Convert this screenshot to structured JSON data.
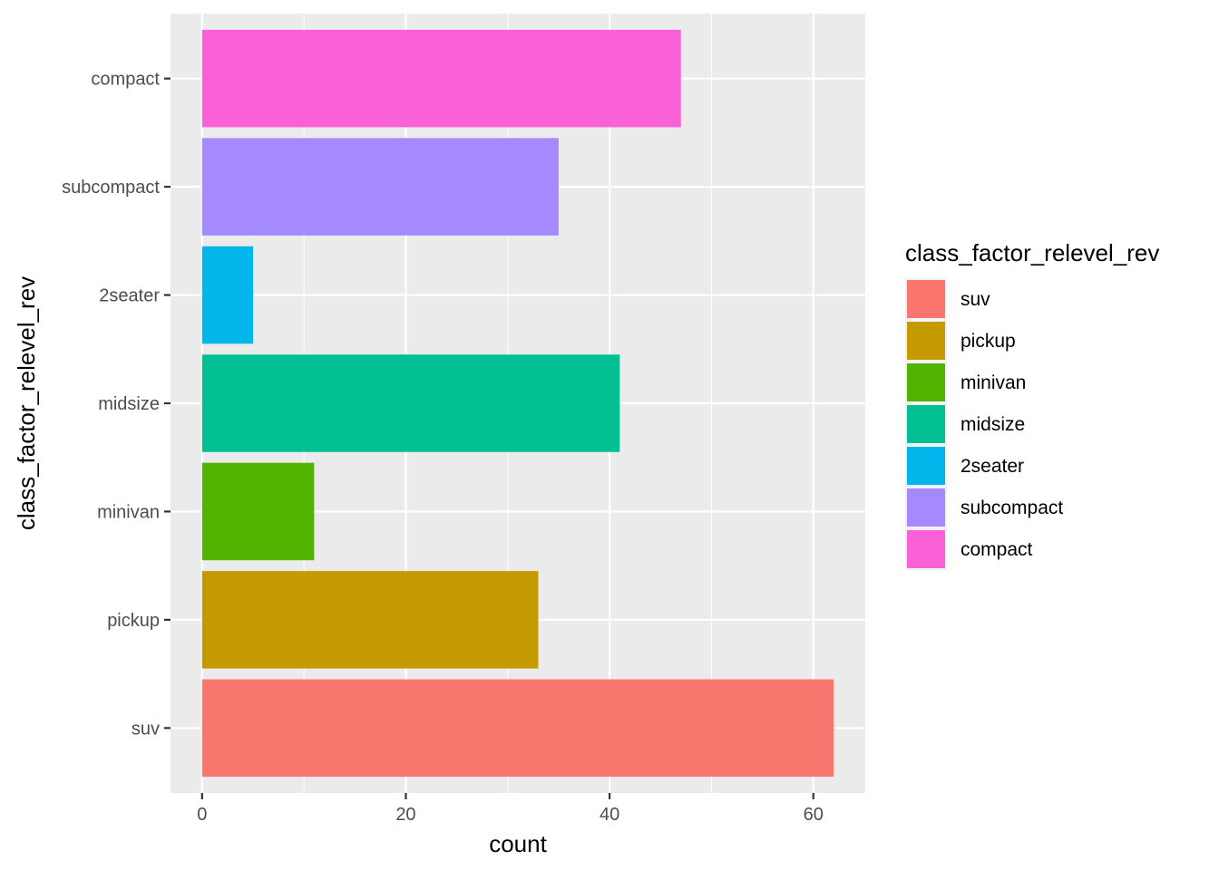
{
  "chart_data": {
    "type": "bar",
    "orientation": "horizontal",
    "categories": [
      "suv",
      "pickup",
      "minivan",
      "midsize",
      "2seater",
      "subcompact",
      "compact"
    ],
    "values": [
      62,
      33,
      11,
      41,
      5,
      35,
      47
    ],
    "colors": [
      "#F8766D",
      "#C49A00",
      "#53B400",
      "#00C094",
      "#00B6EB",
      "#A58AFF",
      "#FB61D7"
    ],
    "xlabel": "count",
    "ylabel": "class_factor_relevel_rev",
    "xlim": [
      -3.1,
      65.1
    ],
    "xticks": [
      0,
      20,
      40,
      60
    ],
    "grid": true,
    "legend": {
      "title": "class_factor_relevel_rev",
      "placement": "right",
      "entries": [
        "suv",
        "pickup",
        "minivan",
        "midsize",
        "2seater",
        "subcompact",
        "compact"
      ]
    }
  }
}
